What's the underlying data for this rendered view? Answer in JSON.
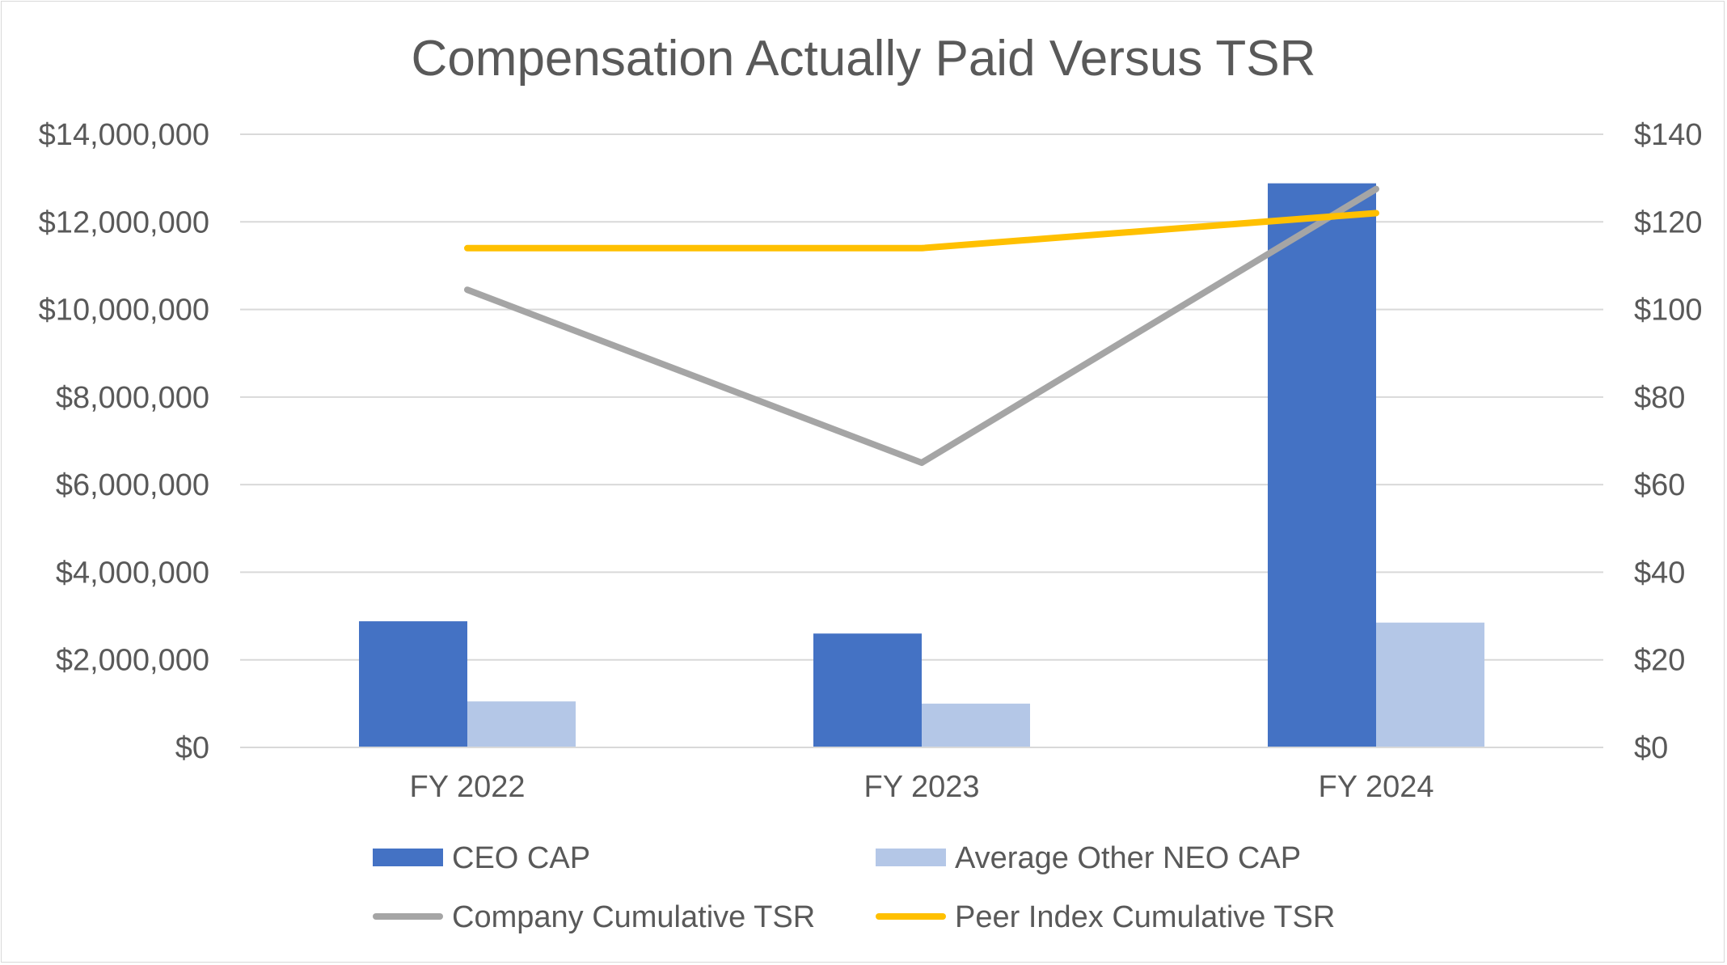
{
  "chart_data": {
    "type": "bar",
    "title": "Compensation Actually Paid Versus TSR",
    "categories": [
      "FY 2022",
      "FY 2023",
      "FY 2024"
    ],
    "series": [
      {
        "name": "CEO CAP",
        "type": "bar",
        "axis": "left",
        "color": "#4472c4",
        "values": [
          2880000,
          2600000,
          12880000
        ]
      },
      {
        "name": "Average Other NEO CAP",
        "type": "bar",
        "axis": "left",
        "color": "#b4c7e7",
        "values": [
          1050000,
          1000000,
          2850000
        ]
      },
      {
        "name": "Company Cumulative TSR",
        "type": "line",
        "axis": "right",
        "color": "#a5a5a5",
        "values": [
          104.5,
          65,
          127.5
        ]
      },
      {
        "name": "Peer Index Cumulative TSR",
        "type": "line",
        "axis": "right",
        "color": "#ffc000",
        "values": [
          114,
          114,
          122
        ]
      }
    ],
    "y_left": {
      "range": [
        0,
        14000000
      ],
      "ticks": [
        0,
        2000000,
        4000000,
        6000000,
        8000000,
        10000000,
        12000000,
        14000000
      ],
      "tick_labels": [
        "$0",
        "$2,000,000",
        "$4,000,000",
        "$6,000,000",
        "$8,000,000",
        "$10,000,000",
        "$12,000,000",
        "$14,000,000"
      ]
    },
    "y_right": {
      "range": [
        0,
        140
      ],
      "ticks": [
        0,
        20,
        40,
        60,
        80,
        100,
        120,
        140
      ],
      "tick_labels": [
        "$0",
        "$20",
        "$40",
        "$60",
        "$80",
        "$100",
        "$120",
        "$140"
      ]
    },
    "grid": true,
    "legend": "bottom"
  }
}
